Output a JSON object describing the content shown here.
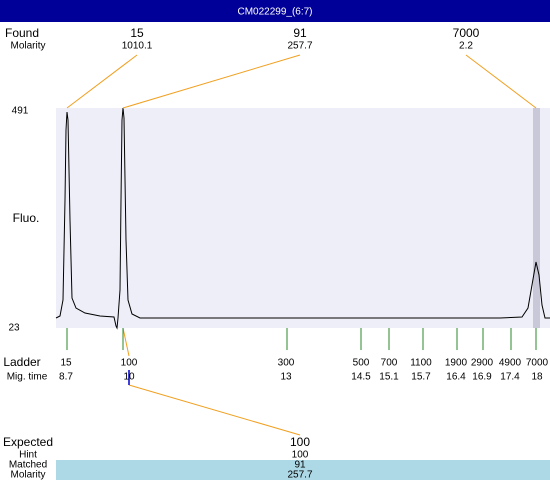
{
  "title": "CM022299_(6:7)",
  "found": {
    "label": "Found",
    "molarity_label": "Molarity",
    "peaks": [
      {
        "size": 15,
        "molarity": 1010.1
      },
      {
        "size": 91,
        "molarity": 257.7
      },
      {
        "size": 7000,
        "molarity": 2.2
      }
    ]
  },
  "y_axis": {
    "label": "Fluo.",
    "max": 491,
    "min": 23
  },
  "ladder": {
    "label": "Ladder",
    "time_label": "Mig. time",
    "sizes": [
      15,
      100,
      300,
      500,
      700,
      1100,
      1900,
      2900,
      4900,
      7000
    ],
    "times": [
      8.7,
      10,
      13,
      14.5,
      15.1,
      15.7,
      16.4,
      16.9,
      17.4,
      18
    ]
  },
  "expected": {
    "label": "Expected",
    "value": 100,
    "hint_label": "Hint",
    "hint": 100,
    "matched_label": "Matched",
    "matched": 91,
    "molarity_label": "Molarity",
    "molarity": 257.7
  }
}
